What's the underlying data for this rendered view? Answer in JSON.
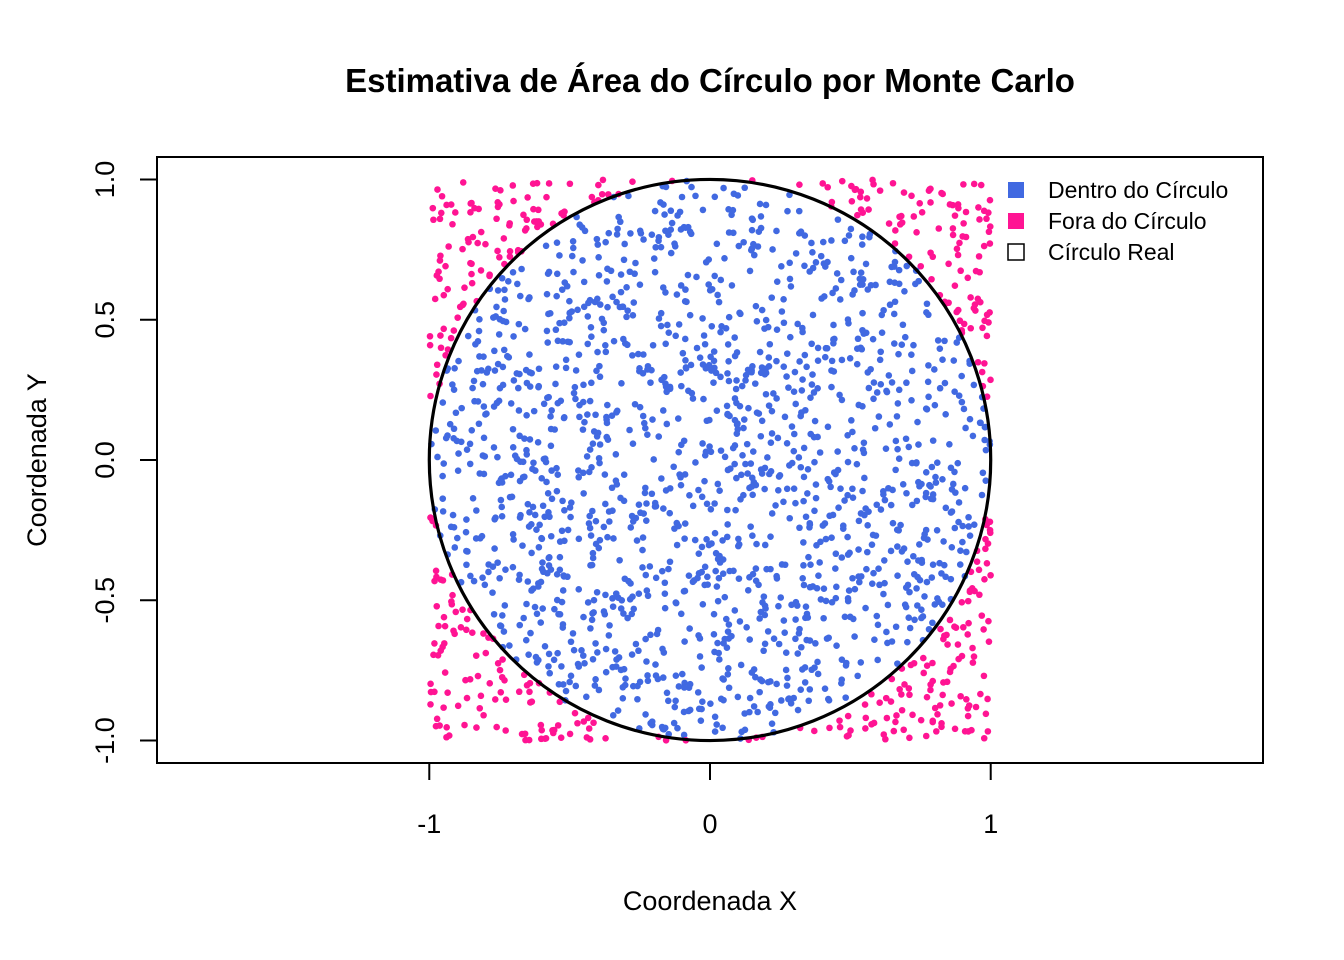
{
  "chart_data": {
    "type": "scatter",
    "title": "Estimativa de Área do Círculo por Monte Carlo",
    "xlabel": "Coordenada X",
    "ylabel": "Coordenada Y",
    "xlim": [
      -1.97,
      1.97
    ],
    "ylim": [
      -1.08,
      1.08
    ],
    "x_ticks": [
      -1,
      0,
      1
    ],
    "x_tick_labels": [
      "-1",
      "0",
      "1"
    ],
    "y_ticks": [
      -1.0,
      -0.5,
      0.0,
      0.5,
      1.0
    ],
    "y_tick_labels": [
      "-1.0",
      "-0.5",
      "0.0",
      "0.5",
      "1.0"
    ],
    "grid": false,
    "aspect": "equal",
    "sampling": {
      "distribution": "uniform",
      "x_range": [
        -1,
        1
      ],
      "y_range": [
        -1,
        1
      ],
      "n_points": 2000
    },
    "series": [
      {
        "name": "Dentro do Círculo",
        "color": "#4169E1",
        "marker": "point",
        "condition": "x^2 + y^2 <= 1"
      },
      {
        "name": "Fora do Círculo",
        "color": "#FF1493",
        "marker": "point",
        "condition": "x^2 + y^2 > 1"
      }
    ],
    "reference_circle": {
      "name": "Círculo Real",
      "center": [
        0,
        0
      ],
      "radius": 1,
      "color": "#000000"
    },
    "legend": {
      "position": "top-right",
      "entries": [
        {
          "label": "Dentro do Círculo",
          "color": "#4169E1",
          "style": "filled-square"
        },
        {
          "label": "Fora do Círculo",
          "color": "#FF1493",
          "style": "filled-square"
        },
        {
          "label": "Círculo Real",
          "color": "#000000",
          "style": "open-square"
        }
      ]
    }
  }
}
